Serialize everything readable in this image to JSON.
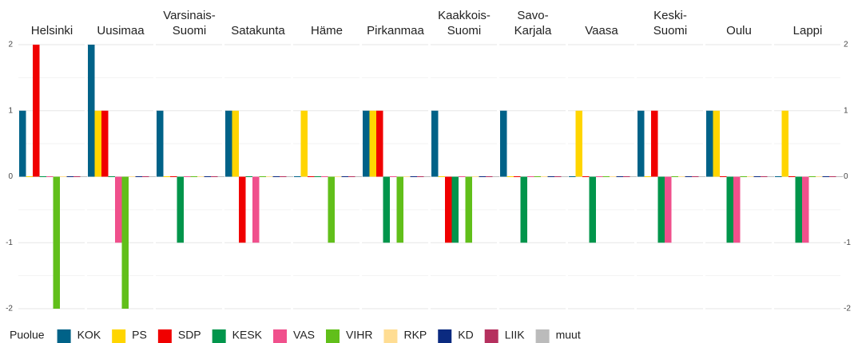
{
  "chart_data": {
    "type": "bar",
    "categories": [
      "KOK",
      "PS",
      "SDP",
      "KESK",
      "VAS",
      "VIHR",
      "RKP",
      "KD",
      "LIIK",
      "muut"
    ],
    "colors": [
      "#006288",
      "#ffd500",
      "#f00000",
      "#01954b",
      "#f0508c",
      "#61bf1a",
      "#ffdd93",
      "#0b2a80",
      "#b5305e",
      "#bbbbbb"
    ],
    "legend_title": "Puolue",
    "facets": [
      {
        "title": "Helsinki",
        "values": [
          1,
          0,
          2,
          0,
          0,
          -2,
          0,
          0,
          0,
          0
        ]
      },
      {
        "title": "Uusimaa",
        "values": [
          2,
          1,
          1,
          0,
          -1,
          -2,
          0,
          0,
          0,
          0
        ]
      },
      {
        "title": "Varsinais-\nSuomi",
        "values": [
          1,
          0,
          0,
          -1,
          0,
          0,
          0,
          0,
          0,
          0
        ]
      },
      {
        "title": "Satakunta",
        "values": [
          1,
          1,
          -1,
          0,
          -1,
          0,
          0,
          0,
          0,
          0
        ]
      },
      {
        "title": "Häme",
        "values": [
          0,
          1,
          0,
          0,
          0,
          -1,
          0,
          0,
          0,
          0
        ]
      },
      {
        "title": "Pirkanmaa",
        "values": [
          1,
          1,
          1,
          -1,
          0,
          -1,
          0,
          0,
          0,
          0
        ]
      },
      {
        "title": "Kaakkois-\nSuomi",
        "values": [
          1,
          0,
          -1,
          -1,
          0,
          -1,
          0,
          0,
          0,
          0
        ]
      },
      {
        "title": "Savo-\nKarjala",
        "values": [
          1,
          0,
          0,
          -1,
          0,
          0,
          0,
          0,
          0,
          0
        ]
      },
      {
        "title": "Vaasa",
        "values": [
          0,
          1,
          0,
          -1,
          0,
          0,
          0,
          0,
          0,
          0
        ]
      },
      {
        "title": "Keski-\nSuomi",
        "values": [
          1,
          0,
          1,
          -1,
          -1,
          0,
          0,
          0,
          0,
          0
        ]
      },
      {
        "title": "Oulu",
        "values": [
          1,
          1,
          0,
          -1,
          -1,
          0,
          0,
          0,
          0,
          0
        ]
      },
      {
        "title": "Lappi",
        "values": [
          0,
          1,
          0,
          -1,
          -1,
          0,
          0,
          0,
          0,
          0
        ]
      }
    ],
    "ylim": [
      -2,
      2
    ],
    "yticks": [
      -2,
      -1,
      0,
      1,
      2
    ],
    "grid": true
  }
}
